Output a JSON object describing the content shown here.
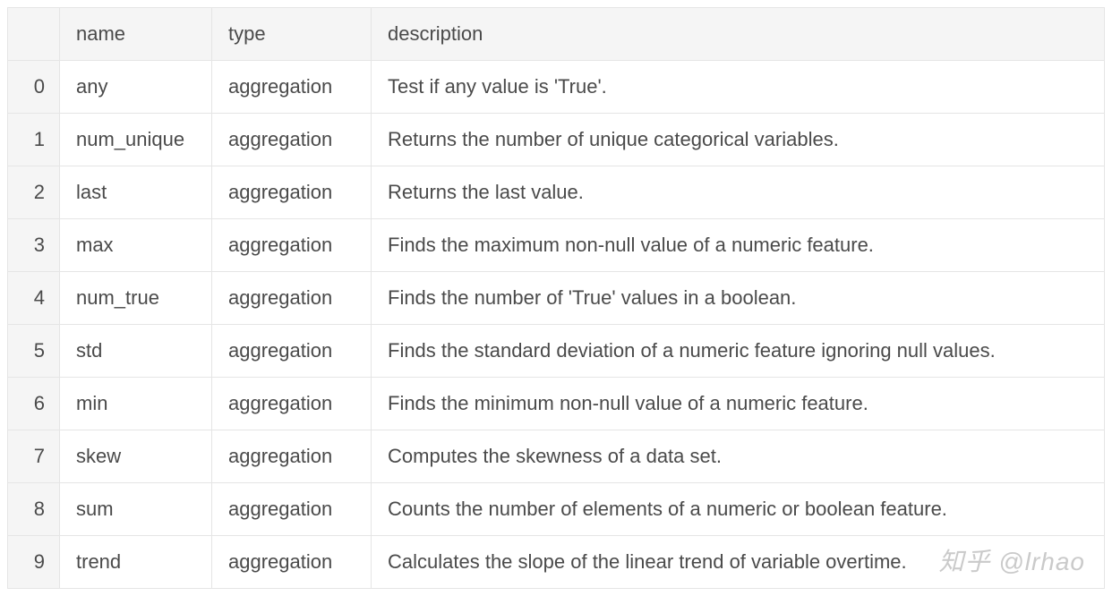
{
  "table": {
    "columns": [
      "",
      "name",
      "type",
      "description"
    ],
    "column_widths": [
      "58px",
      "170px",
      "178px",
      "auto"
    ],
    "header_bg": "#f5f5f5",
    "row_bg": "#ffffff",
    "index_bg": "#f5f5f5",
    "border_color": "#e5e5e5",
    "text_color": "#4a4a4a",
    "font_size": 22,
    "rows": [
      {
        "index": "0",
        "name": "any",
        "type": "aggregation",
        "description": "Test if any value is 'True'."
      },
      {
        "index": "1",
        "name": "num_unique",
        "type": "aggregation",
        "description": "Returns the number of unique categorical variables."
      },
      {
        "index": "2",
        "name": "last",
        "type": "aggregation",
        "description": "Returns the last value."
      },
      {
        "index": "3",
        "name": "max",
        "type": "aggregation",
        "description": "Finds the maximum non-null value of a numeric feature."
      },
      {
        "index": "4",
        "name": "num_true",
        "type": "aggregation",
        "description": "Finds the number of 'True' values in a boolean."
      },
      {
        "index": "5",
        "name": "std",
        "type": "aggregation",
        "description": "Finds the standard deviation of a numeric feature ignoring null values."
      },
      {
        "index": "6",
        "name": "min",
        "type": "aggregation",
        "description": "Finds the minimum non-null value of a numeric feature."
      },
      {
        "index": "7",
        "name": "skew",
        "type": "aggregation",
        "description": "Computes the skewness of a data set."
      },
      {
        "index": "8",
        "name": "sum",
        "type": "aggregation",
        "description": "Counts the number of elements of a numeric or boolean feature."
      },
      {
        "index": "9",
        "name": "trend",
        "type": "aggregation",
        "description": "Calculates the slope of the linear trend of variable overtime."
      }
    ]
  },
  "watermark": "知乎 @lrhao"
}
